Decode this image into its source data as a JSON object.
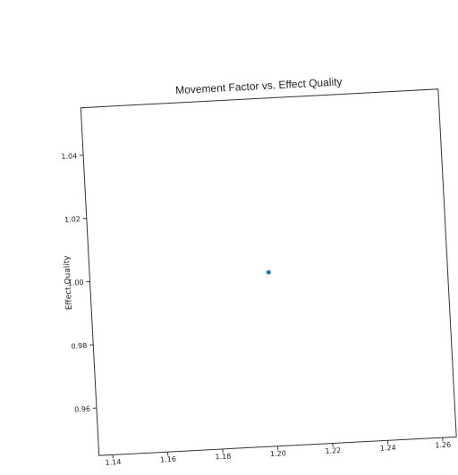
{
  "chart_data": {
    "type": "scatter",
    "title": "Movement Factor vs. Effect Quality",
    "xlabel": "",
    "ylabel": "Effect Quality",
    "xlim": [
      1.135,
      1.265
    ],
    "ylim": [
      0.945,
      1.055
    ],
    "x_ticks": [
      "1.14",
      "1.16",
      "1.18",
      "1.20",
      "1.22",
      "1.24",
      "1.26"
    ],
    "y_ticks": [
      "0.96",
      "0.98",
      "1.00",
      "1.02",
      "1.04"
    ],
    "points": [
      {
        "x": 1.2,
        "y": 1.0
      }
    ],
    "point_color": "#1f77b4",
    "grid": false
  }
}
